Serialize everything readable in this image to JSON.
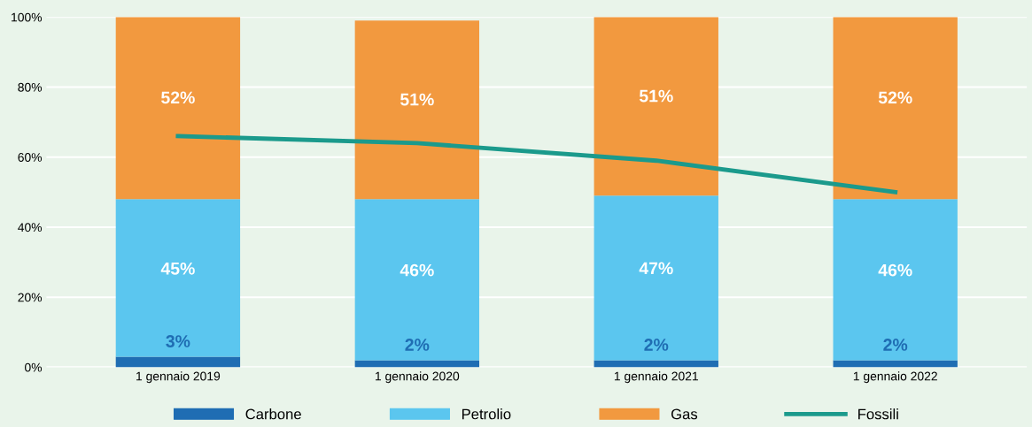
{
  "chart_data": {
    "type": "bar",
    "stacked": true,
    "categories": [
      "1 gennaio 2019",
      "1 gennaio 2020",
      "1 gennaio 2021",
      "1 gennaio 2022"
    ],
    "series": [
      {
        "name": "Carbone",
        "color": "#1f6db3",
        "values": [
          3,
          2,
          2,
          2
        ],
        "value_labels": [
          "3%",
          "2%",
          "2%",
          "2%"
        ]
      },
      {
        "name": "Petrolio",
        "color": "#5bc6ef",
        "values": [
          45,
          46,
          47,
          46
        ],
        "value_labels": [
          "45%",
          "46%",
          "47%",
          "46%"
        ]
      },
      {
        "name": "Gas",
        "color": "#f2993f",
        "values": [
          52,
          51,
          51,
          52
        ],
        "value_labels": [
          "52%",
          "51%",
          "51%",
          "52%"
        ]
      },
      {
        "name": "Fossili",
        "type": "line",
        "color": "#1b9a8c",
        "values": [
          66,
          64,
          59,
          50
        ]
      }
    ],
    "ylim": [
      0,
      100
    ],
    "yticks": [
      {
        "value": 0,
        "label": "0%"
      },
      {
        "value": 20,
        "label": "20%"
      },
      {
        "value": 40,
        "label": "40%"
      },
      {
        "value": 60,
        "label": "60%"
      },
      {
        "value": 80,
        "label": "80%"
      },
      {
        "value": 100,
        "label": "100%"
      }
    ],
    "grid": "y",
    "legend": "bottom",
    "marker": "none",
    "line_style": "solid"
  }
}
